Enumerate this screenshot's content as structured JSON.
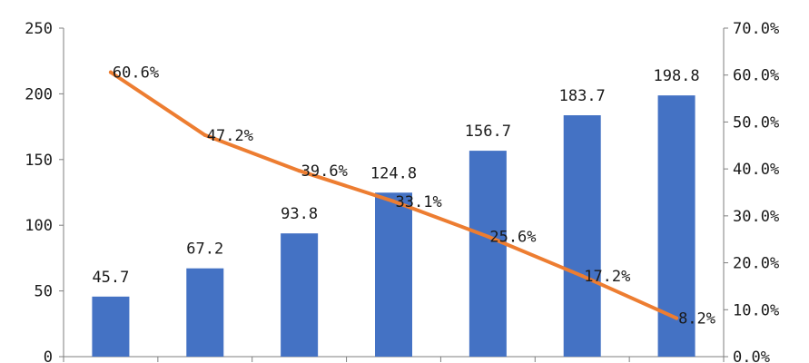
{
  "chart_data": {
    "type": "bar",
    "title": "",
    "xlabel": "",
    "ylabel": "",
    "categories": [
      "",
      "",
      "",
      "",
      "",
      "",
      ""
    ],
    "series": [
      {
        "type": "bar",
        "axis": "left",
        "values": [
          45.7,
          67.2,
          93.8,
          124.8,
          156.7,
          183.7,
          198.8
        ],
        "labels": [
          "45.7",
          "67.2",
          "93.8",
          "124.8",
          "156.7",
          "183.7",
          "198.8"
        ]
      },
      {
        "type": "line",
        "axis": "right",
        "values": [
          60.6,
          47.2,
          39.6,
          33.1,
          25.6,
          17.2,
          8.2
        ],
        "labels": [
          "60.6%",
          "47.2%",
          "39.6%",
          "33.1%",
          "25.6%",
          "17.2%",
          "8.2%"
        ]
      }
    ],
    "y_left": {
      "range": [
        0,
        250
      ],
      "ticks": [
        "0",
        "50",
        "100",
        "150",
        "200",
        "250"
      ]
    },
    "y_right": {
      "range": [
        0,
        70
      ],
      "ticks": [
        "0.0%",
        "10.0%",
        "20.0%",
        "30.0%",
        "40.0%",
        "50.0%",
        "60.0%",
        "70.0%"
      ]
    },
    "grid": false,
    "legend": "none",
    "colors": {
      "bar": "#4472c4",
      "line": "#ed7d31",
      "axis": "#7f7f7f"
    }
  }
}
